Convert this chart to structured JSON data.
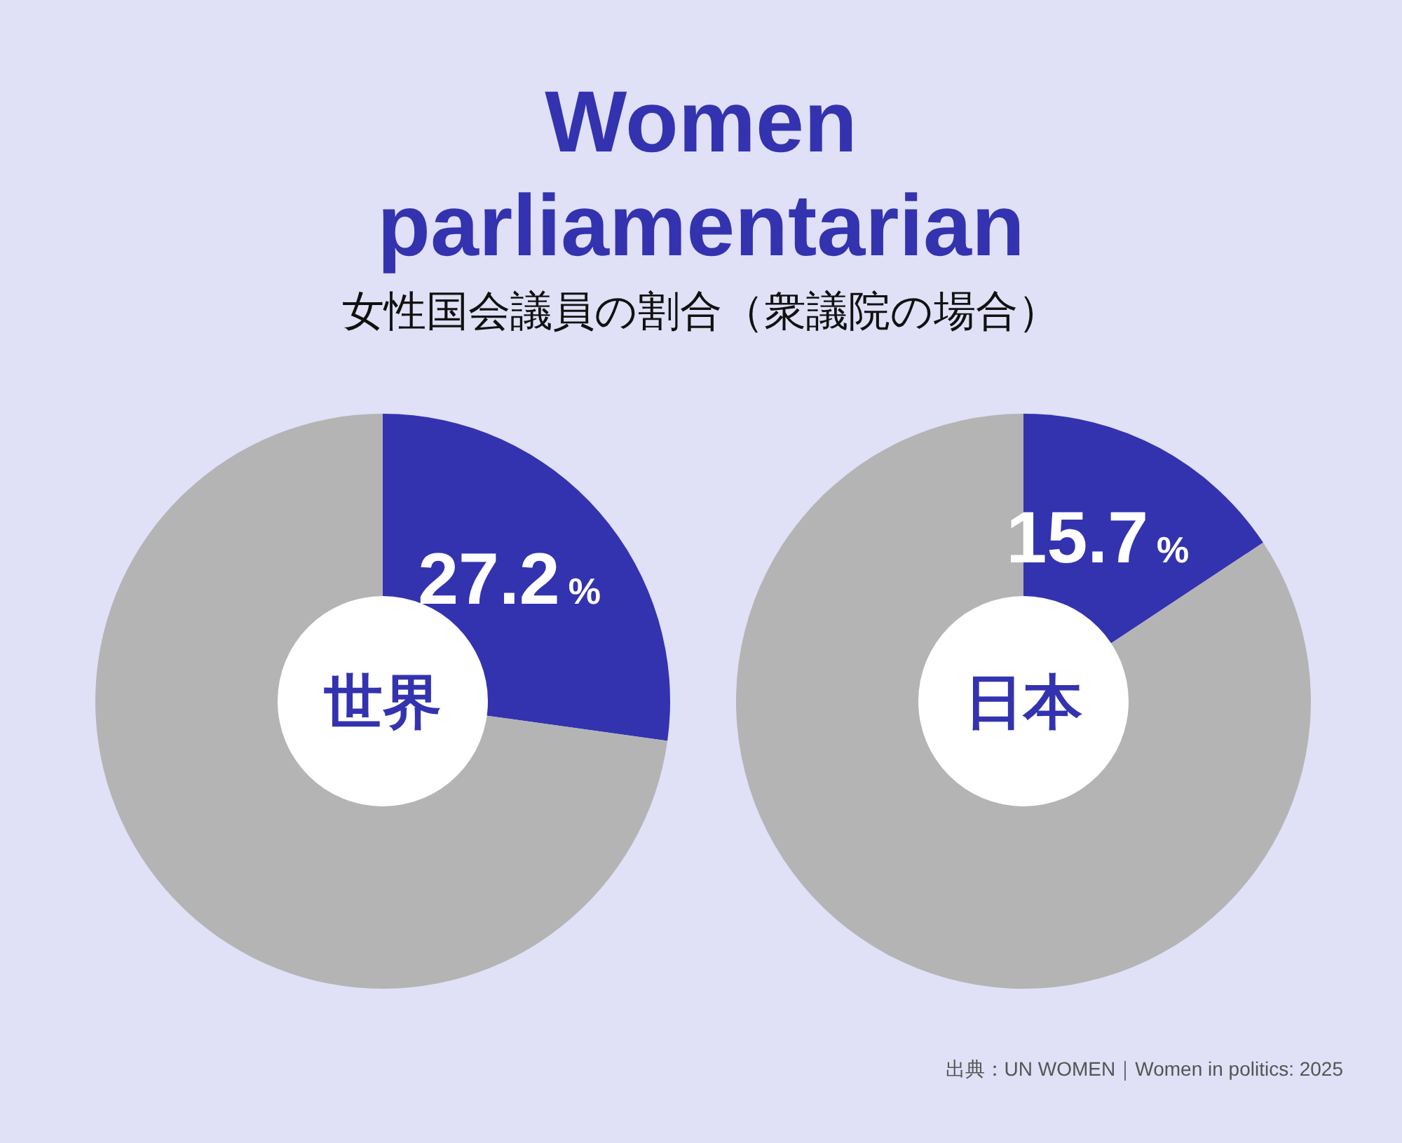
{
  "chart_data": [
    {
      "type": "donut",
      "title": "Women parliamentarian",
      "subtitle": "女性国会議員の割合（衆議院の場合）",
      "annotations": [
        "世界"
      ],
      "categories": [
        null,
        null
      ],
      "values": [
        27.2,
        72.8
      ],
      "colors": [
        "#3333b0",
        "#b4b4b4"
      ],
      "value_labels": [
        "27.2%",
        null
      ]
    },
    {
      "type": "donut",
      "annotations": [
        "日本",
        "出典：UN WOMEN｜Women in politics: 2025"
      ],
      "categories": [
        null,
        null
      ],
      "values": [
        15.7,
        84.3
      ],
      "colors": [
        "#3333b0",
        "#b4b4b4"
      ],
      "value_labels": [
        "15.7%",
        null
      ]
    }
  ]
}
